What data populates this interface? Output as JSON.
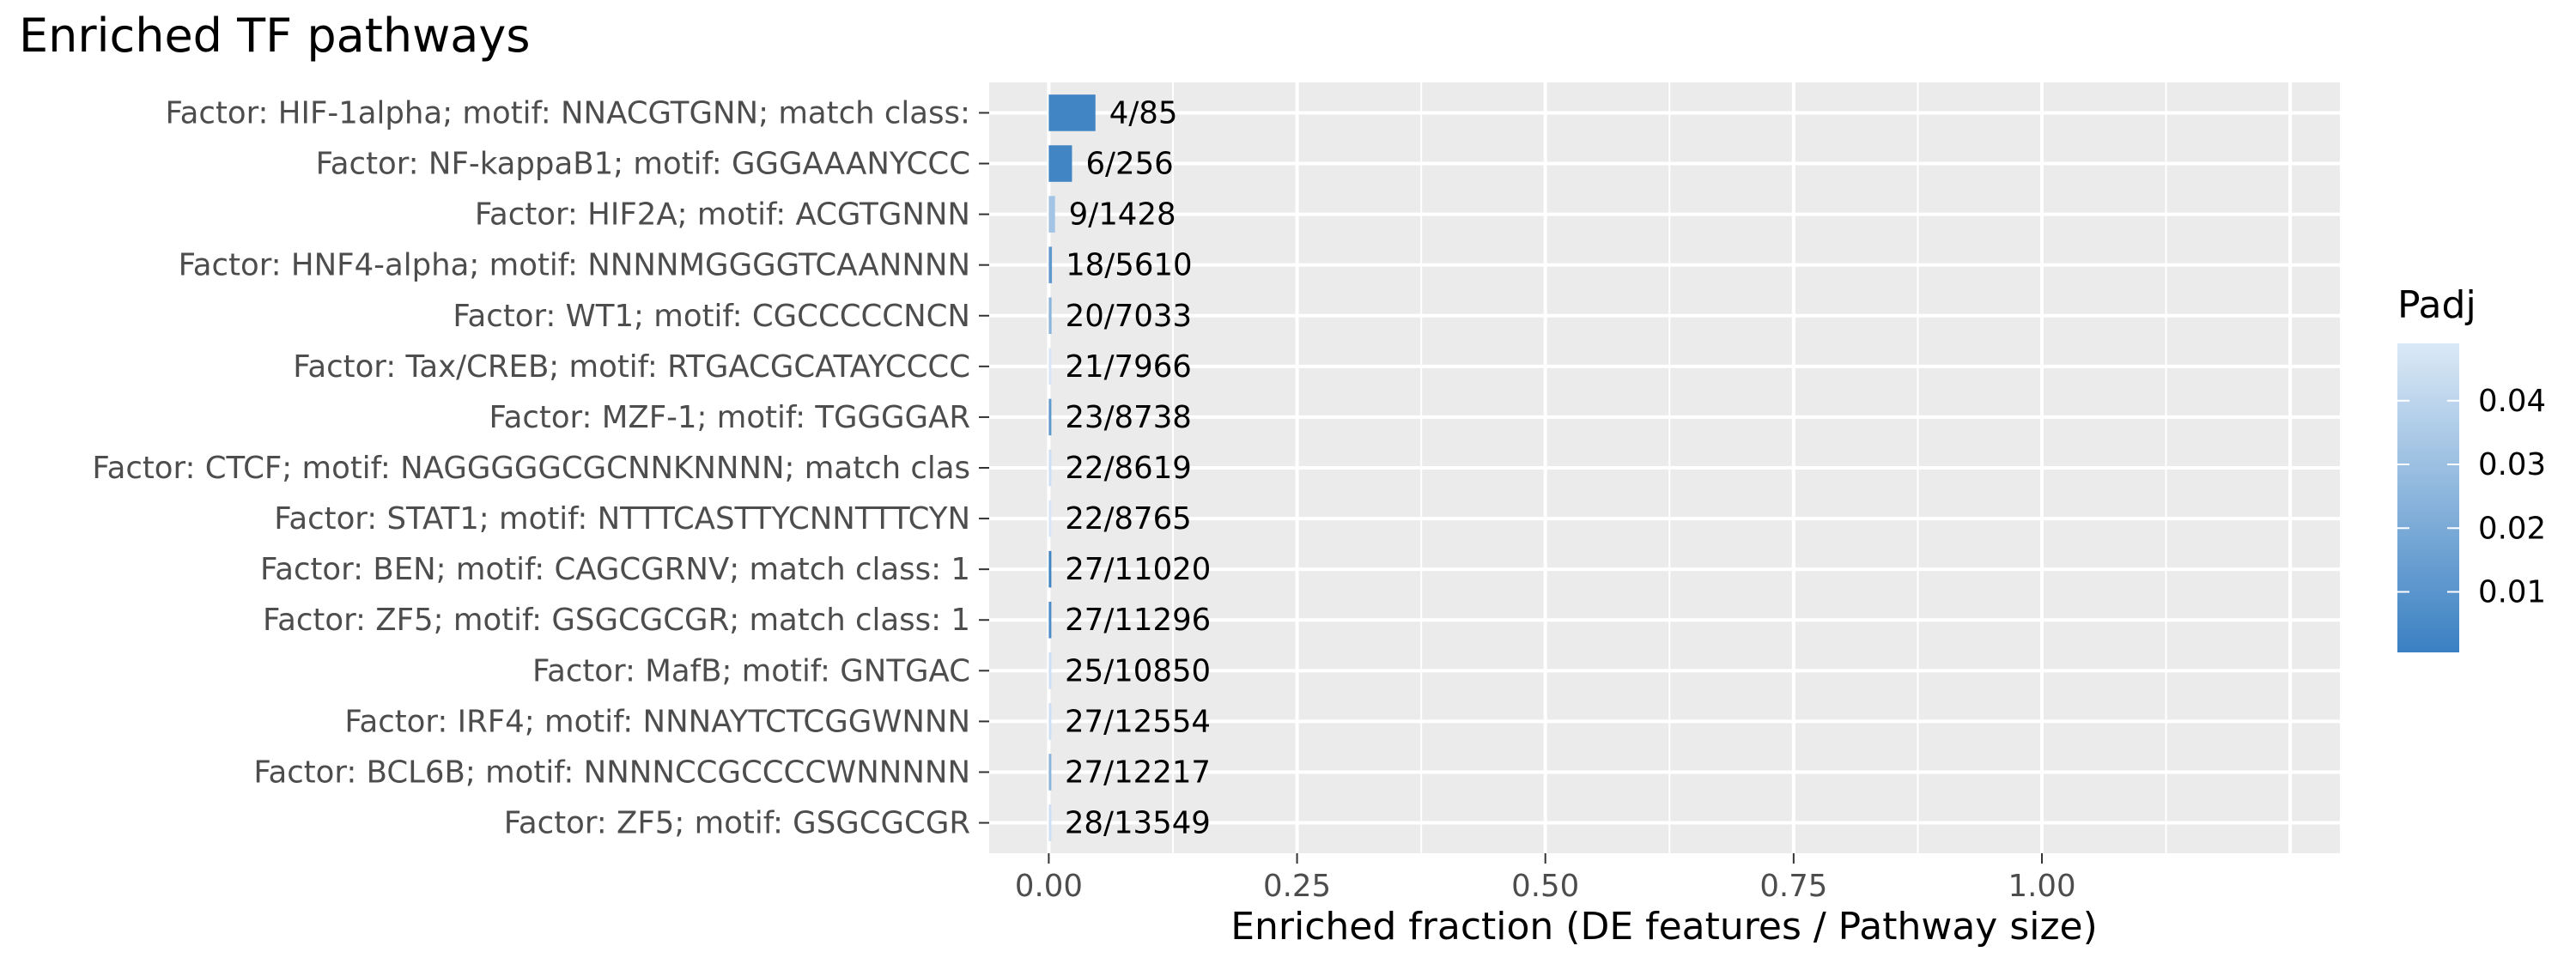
{
  "chart_data": {
    "type": "bar",
    "orientation": "horizontal",
    "title": "Enriched TF pathways",
    "xlabel": "Enriched fraction (DE features / Pathway size)",
    "ylabel": "",
    "xlim": [
      -0.06,
      1.3
    ],
    "xticks": [
      0.0,
      0.25,
      0.5,
      0.75,
      1.0
    ],
    "xtick_labels": [
      "0.00",
      "0.25",
      "0.50",
      "0.75",
      "1.00"
    ],
    "grid": true,
    "legend": {
      "title": "Padj",
      "type": "colorbar",
      "placement": "right",
      "range": [
        0.0005,
        0.049
      ],
      "ticks": [
        0.01,
        0.02,
        0.03,
        0.04
      ],
      "tick_labels": [
        "0.01",
        "0.02",
        "0.03",
        "0.04"
      ],
      "color_low": "#3a80c2",
      "color_high": "#dbe9f6"
    },
    "categories": [
      "Factor: HIF-1alpha; motif: NNACGTGNN; match class:",
      "Factor: NF-kappaB1; motif: GGGAAANYCCC",
      "Factor: HIF2A; motif: ACGTGNNN",
      "Factor: HNF4-alpha; motif: NNNNMGGGGTCAANNNN",
      "Factor: WT1; motif: CGCCCCCNCN",
      "Factor: Tax/CREB; motif: RTGACGCATAYCCCC",
      "Factor: MZF-1; motif: TGGGGAR",
      "Factor: CTCF; motif: NAGGGGGCGCNNKNNNN; match clas",
      "Factor: STAT1; motif: NTTTCASTTYCNNTTTCYN",
      "Factor: BEN; motif: CAGCGRNV; match class: 1",
      "Factor: ZF5; motif: GSGCGCGR; match class: 1",
      "Factor: MafB; motif: GNTGAC",
      "Factor: IRF4; motif: NNNAYTCTCGGWNNN",
      "Factor: BCL6B; motif: NNNNCCGCCCCWNNNNN",
      "Factor: ZF5; motif: GSGCGCGR"
    ],
    "values": [
      0.047,
      0.0234,
      0.0063,
      0.0032,
      0.0028,
      0.0026,
      0.0026,
      0.0026,
      0.0025,
      0.0025,
      0.0024,
      0.0023,
      0.0022,
      0.0022,
      0.0021
    ],
    "data_labels": [
      "4/85",
      "6/256",
      "9/1428",
      "18/5610",
      "20/7033",
      "21/7966",
      "23/8738",
      "22/8619",
      "22/8765",
      "27/11020",
      "27/11296",
      "25/10850",
      "27/12554",
      "27/12217",
      "28/13549"
    ],
    "padj": [
      0.003,
      0.003,
      0.032,
      0.012,
      0.025,
      0.048,
      0.012,
      0.045,
      0.048,
      0.003,
      0.006,
      0.045,
      0.045,
      0.025,
      0.045
    ],
    "panel_bg": "#ebebeb",
    "grid_color": "#ffffff"
  }
}
